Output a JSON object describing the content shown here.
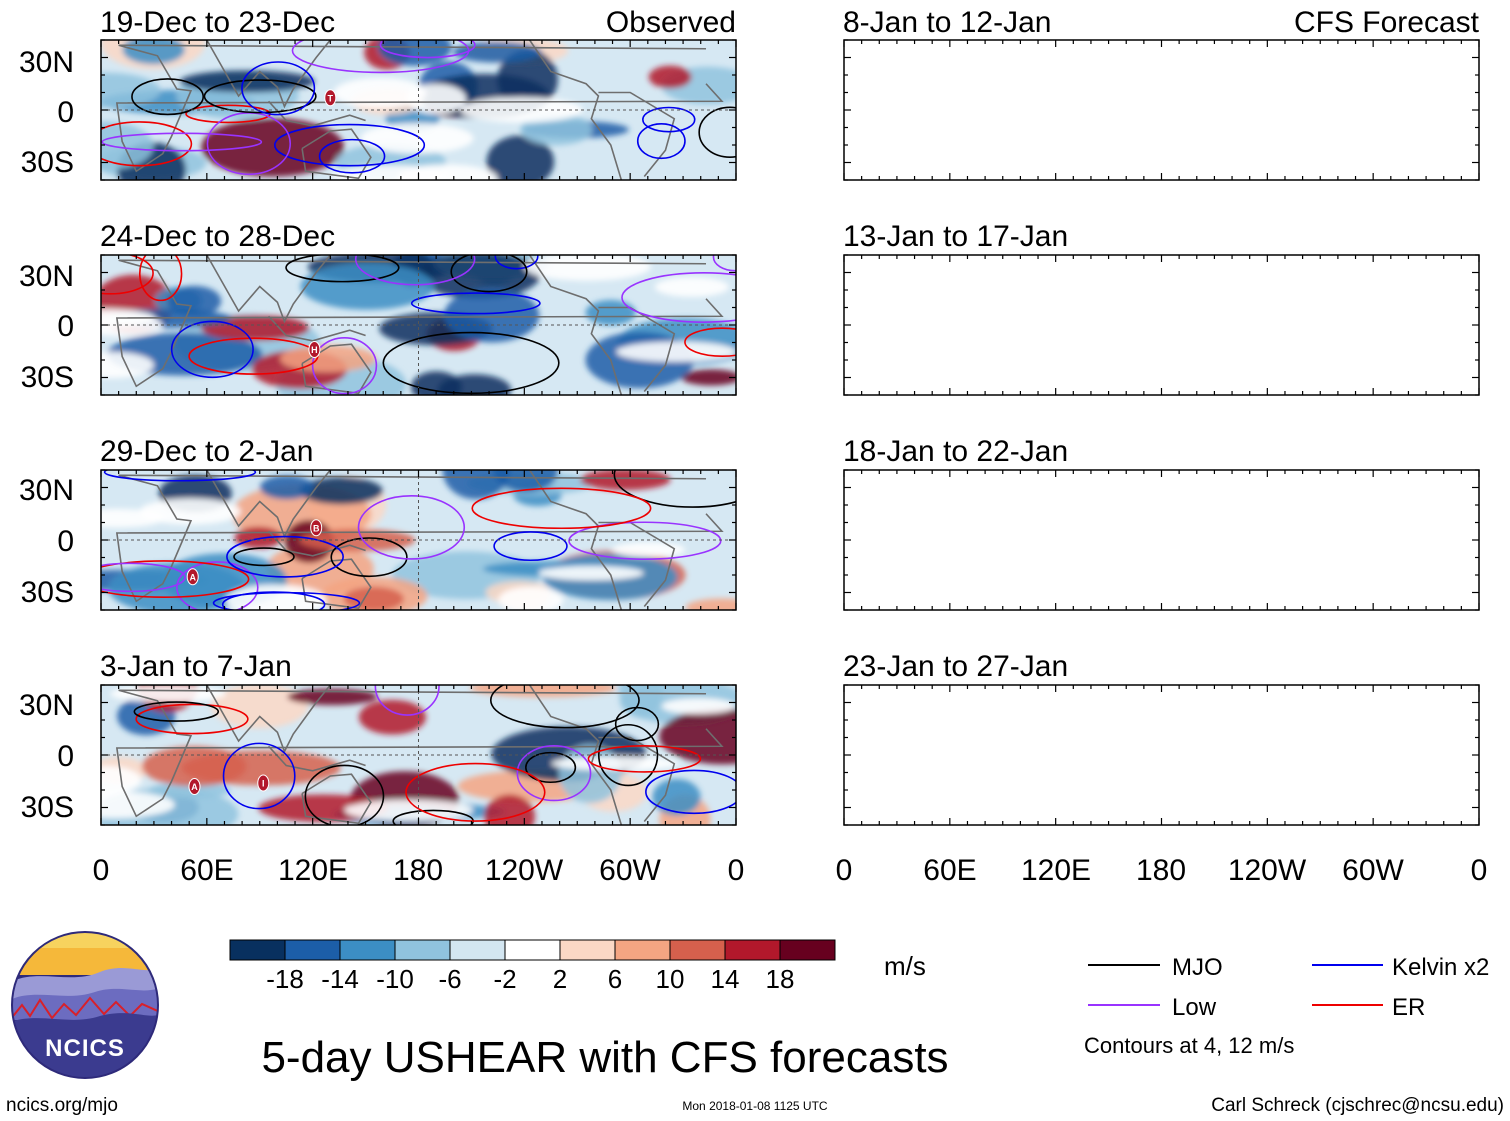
{
  "left_header": "Observed",
  "right_header": "CFS Forecast",
  "observed_panels": [
    {
      "period": "19-Dec to 23-Dec",
      "storms": [
        {
          "label": "T",
          "lon": 130,
          "lat": 7
        }
      ]
    },
    {
      "period": "24-Dec to 28-Dec",
      "storms": [
        {
          "label": "H",
          "lon": 121,
          "lat": -14
        }
      ]
    },
    {
      "period": "29-Dec to 2-Jan",
      "storms": [
        {
          "label": "B",
          "lon": 122,
          "lat": 7
        },
        {
          "label": "A",
          "lon": 52,
          "lat": -21
        }
      ]
    },
    {
      "period": "3-Jan to 7-Jan",
      "storms": [
        {
          "label": "A",
          "lon": 53,
          "lat": -18
        },
        {
          "label": "I",
          "lon": 92,
          "lat": -16
        }
      ]
    }
  ],
  "forecast_panels": [
    {
      "period": "8-Jan to 12-Jan"
    },
    {
      "period": "13-Jan to 17-Jan"
    },
    {
      "period": "18-Jan to 22-Jan"
    },
    {
      "period": "23-Jan to 27-Jan"
    }
  ],
  "lat_ticks": [
    "30N",
    "0",
    "30S"
  ],
  "lon_ticks": [
    "0",
    "60E",
    "120E",
    "180",
    "120W",
    "60W",
    "0"
  ],
  "colorbar": {
    "ticks": [
      "-18",
      "-14",
      "-10",
      "-6",
      "-2",
      "2",
      "6",
      "10",
      "14",
      "18"
    ],
    "colors": [
      "#08305f",
      "#1c5ea8",
      "#3c8ec4",
      "#90c3de",
      "#d3e6f1",
      "#ffffff",
      "#fbd8c5",
      "#f4a582",
      "#d6604d",
      "#b2182b",
      "#67001f"
    ],
    "units": "m/s"
  },
  "legend": {
    "items": [
      {
        "label": "MJO",
        "color": "#000000"
      },
      {
        "label": "Kelvin x2",
        "color": "#0000ee"
      },
      {
        "label": "Low",
        "color": "#9933ff"
      },
      {
        "label": "ER",
        "color": "#ee0000"
      }
    ],
    "note": "Contours at 4, 12 m/s"
  },
  "title": "5-day USHEAR with CFS forecasts",
  "logo_text": "NCICS",
  "footer": {
    "url": "ncics.org/mjo",
    "timestamp": "Mon 2018-01-08 1125 UTC",
    "credit": "Carl Schreck (cjschrec@ncsu.edu)"
  }
}
